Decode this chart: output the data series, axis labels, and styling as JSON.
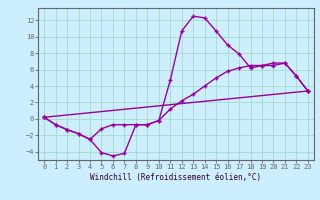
{
  "xlabel": "Windchill (Refroidissement éolien,°C)",
  "background_color": "#cceeff",
  "grid_color": "#aaddcc",
  "line_color": "#990099",
  "xlim": [
    -0.5,
    23.5
  ],
  "ylim": [
    -5,
    13.5
  ],
  "xticks": [
    0,
    1,
    2,
    3,
    4,
    5,
    6,
    7,
    8,
    9,
    10,
    11,
    12,
    13,
    14,
    15,
    16,
    17,
    18,
    19,
    20,
    21,
    22,
    23
  ],
  "yticks": [
    -4,
    -2,
    0,
    2,
    4,
    6,
    8,
    10,
    12
  ],
  "line1_x": [
    0,
    1,
    2,
    3,
    4,
    5,
    6,
    7,
    8,
    9,
    10,
    11,
    12,
    13,
    14,
    15,
    16,
    17,
    18,
    19,
    20,
    21,
    22,
    23
  ],
  "line1_y": [
    0.2,
    -0.7,
    -1.3,
    -1.8,
    -2.5,
    -4.1,
    -4.5,
    -4.2,
    -0.7,
    -0.7,
    -0.2,
    4.7,
    10.7,
    12.5,
    12.3,
    10.7,
    9.0,
    7.9,
    6.2,
    6.5,
    6.8,
    6.8,
    5.2,
    3.4
  ],
  "line2_x": [
    0,
    1,
    2,
    3,
    4,
    5,
    6,
    7,
    8,
    9,
    10,
    11,
    12,
    13,
    14,
    15,
    16,
    17,
    18,
    19,
    20,
    21,
    22,
    23
  ],
  "line2_y": [
    0.2,
    -0.7,
    -1.3,
    -1.8,
    -2.5,
    -1.2,
    -0.7,
    -0.7,
    -0.7,
    -0.7,
    -0.2,
    1.2,
    2.2,
    3.0,
    4.0,
    5.0,
    5.8,
    6.2,
    6.5,
    6.5,
    6.5,
    6.8,
    5.2,
    3.4
  ],
  "line3_x": [
    0,
    23
  ],
  "line3_y": [
    0.2,
    3.4
  ],
  "spine_color": "#666666",
  "xlabel_fontsize": 5.5,
  "tick_fontsize": 5.0,
  "linewidth": 1.0,
  "marker": "+",
  "markersize": 3
}
